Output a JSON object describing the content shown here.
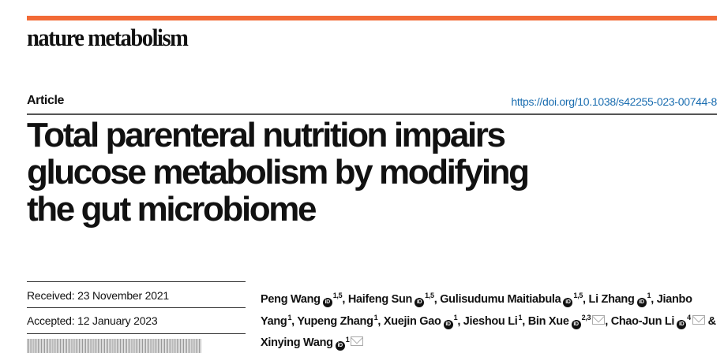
{
  "journal": {
    "name": "nature metabolism",
    "accent": "#f26a36"
  },
  "article": {
    "type": "Article",
    "doi": "https://doi.org/10.1038/s42255-023-00744-8",
    "title_lines": [
      "Total parenteral nutrition impairs",
      "glucose metabolism by modifying",
      "the gut microbiome"
    ]
  },
  "dates": {
    "received": "Received: 23 November 2021",
    "accepted": "Accepted: 12 January 2023"
  },
  "authors": [
    {
      "name": "Peng Wang",
      "orcid": true,
      "aff": "1,5",
      "mail": false,
      "sep": ", "
    },
    {
      "name": "Haifeng Sun",
      "orcid": true,
      "aff": "1,5",
      "mail": false,
      "sep": ", "
    },
    {
      "name": "Gulisudumu Maitiabula",
      "orcid": true,
      "aff": "1,5",
      "mail": false,
      "sep": ", "
    },
    {
      "name": "Li Zhang",
      "orcid": true,
      "aff": "1",
      "mail": false,
      "sep": ", "
    },
    {
      "name": "Jianbo Yang",
      "orcid": false,
      "aff": "1",
      "mail": false,
      "sep": ", "
    },
    {
      "name": "Yupeng Zhang",
      "orcid": false,
      "aff": "1",
      "mail": false,
      "sep": ", "
    },
    {
      "name": "Xuejin Gao",
      "orcid": true,
      "aff": "1",
      "mail": false,
      "sep": ", "
    },
    {
      "name": "Jieshou Li",
      "orcid": false,
      "aff": "1",
      "mail": false,
      "sep": ", "
    },
    {
      "name": "Bin Xue",
      "orcid": true,
      "aff": "2,3",
      "mail": true,
      "sep": ", "
    },
    {
      "name": "Chao-Jun Li",
      "orcid": true,
      "aff": "4",
      "mail": true,
      "sep": " & "
    },
    {
      "name": "Xinying Wang",
      "orcid": true,
      "aff": "1",
      "mail": true,
      "sep": ""
    }
  ]
}
